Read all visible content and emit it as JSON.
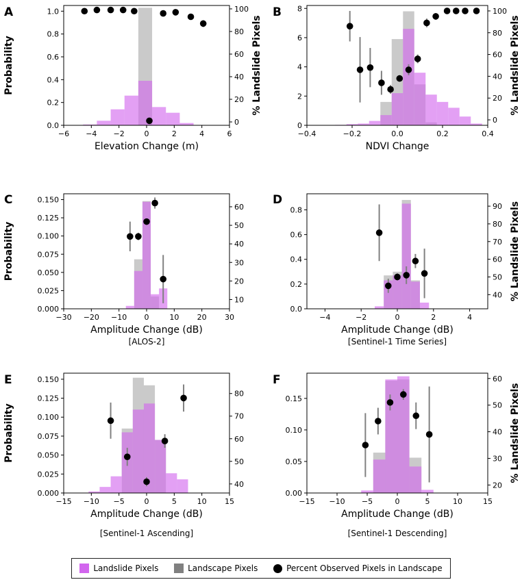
{
  "colors": {
    "landslide": "#d266ee",
    "landscape": "#808080",
    "marker": "#000000",
    "errbar": "#808080"
  },
  "legend": {
    "landslide": "Landslide Pixels",
    "landscape": "Landscape Pixels",
    "percent": "Percent Observed Pixels in Landscape"
  },
  "chart_data": [
    {
      "letter": "A",
      "type": "bar",
      "xlabel": "Elevation Change (m)",
      "ylabel": "Probability",
      "ylabel_right": "% Landslide Pixels",
      "caption": "",
      "xlim": [
        -6,
        6
      ],
      "xticks": [
        "−6",
        "−4",
        "−2",
        "0",
        "2",
        "4",
        "6"
      ],
      "xtick_values": [
        -6,
        -4,
        -2,
        0,
        2,
        4,
        6
      ],
      "ylim": [
        0,
        1.05
      ],
      "yticks": [
        "0.0",
        "0.2",
        "0.4",
        "0.6",
        "0.8",
        "1.0"
      ],
      "ytick_values": [
        0,
        0.2,
        0.4,
        0.6,
        0.8,
        1.0
      ],
      "y2lim": [
        -3,
        103
      ],
      "y2ticks": [
        "0",
        "20",
        "40",
        "60",
        "80",
        "100"
      ],
      "y2tick_values": [
        0,
        20,
        40,
        60,
        80,
        100
      ],
      "bin_edges": [
        -4.6,
        -3.6,
        -2.6,
        -1.6,
        -0.6,
        0.4,
        1.4,
        2.4,
        3.4
      ],
      "landslide": [
        0.007,
        0.04,
        0.14,
        0.26,
        0.39,
        0.16,
        0.11,
        0.02
      ],
      "landscape": [
        0,
        0,
        0,
        0,
        1.03,
        0,
        0,
        0
      ],
      "points": [
        {
          "x": -4.5,
          "y": 98,
          "err": 0
        },
        {
          "x": -3.6,
          "y": 99,
          "err": 0
        },
        {
          "x": -2.6,
          "y": 99,
          "err": 0
        },
        {
          "x": -1.7,
          "y": 99,
          "err": 0
        },
        {
          "x": -0.9,
          "y": 98,
          "err": 0
        },
        {
          "x": 0.2,
          "y": 1,
          "err": 0
        },
        {
          "x": 1.2,
          "y": 96,
          "err": 0
        },
        {
          "x": 2.1,
          "y": 97,
          "err": 0
        },
        {
          "x": 3.2,
          "y": 93,
          "err": 1
        },
        {
          "x": 4.1,
          "y": 87,
          "err": 3
        }
      ]
    },
    {
      "letter": "B",
      "type": "bar",
      "xlabel": "NDVI Change",
      "ylabel": "",
      "ylabel_right": "% Landslide Pixels",
      "caption": "",
      "xlim": [
        -0.4,
        0.4
      ],
      "xticks": [
        "−0.4",
        "−0.2",
        "0.0",
        "0.2",
        "0.4"
      ],
      "xtick_values": [
        -0.4,
        -0.2,
        0,
        0.2,
        0.4
      ],
      "ylim": [
        0,
        8.2
      ],
      "yticks": [
        "0",
        "2",
        "4",
        "6",
        "8"
      ],
      "ytick_values": [
        0,
        2,
        4,
        6,
        8
      ],
      "y2lim": [
        -5,
        105
      ],
      "y2ticks": [
        "0",
        "20",
        "40",
        "60",
        "80",
        "100"
      ],
      "y2tick_values": [
        0,
        20,
        40,
        60,
        80,
        100
      ],
      "bin_edges": [
        -0.375,
        -0.325,
        -0.275,
        -0.225,
        -0.175,
        -0.125,
        -0.075,
        -0.025,
        0.025,
        0.075,
        0.125,
        0.175,
        0.225,
        0.275,
        0.325,
        0.375
      ],
      "landslide": [
        0.01,
        0.01,
        0.03,
        0.08,
        0.12,
        0.3,
        0.7,
        2.2,
        6.6,
        3.6,
        2.1,
        1.6,
        1.2,
        0.6,
        0.12
      ],
      "landscape": [
        0,
        0,
        0,
        0,
        0,
        0,
        1.6,
        5.9,
        7.8,
        2.8,
        0.2,
        0,
        0,
        0,
        0
      ],
      "points": [
        {
          "x": -0.21,
          "y": 86,
          "err": 14
        },
        {
          "x": -0.165,
          "y": 46,
          "err": 30
        },
        {
          "x": -0.12,
          "y": 48,
          "err": 18
        },
        {
          "x": -0.07,
          "y": 34,
          "err": 11
        },
        {
          "x": -0.03,
          "y": 28,
          "err": 4
        },
        {
          "x": 0.01,
          "y": 38,
          "err": 3
        },
        {
          "x": 0.05,
          "y": 46,
          "err": 5
        },
        {
          "x": 0.09,
          "y": 56,
          "err": 4
        },
        {
          "x": 0.13,
          "y": 89,
          "err": 4
        },
        {
          "x": 0.17,
          "y": 95,
          "err": 3
        },
        {
          "x": 0.22,
          "y": 100,
          "err": 0
        },
        {
          "x": 0.26,
          "y": 100,
          "err": 0
        },
        {
          "x": 0.3,
          "y": 100,
          "err": 0
        },
        {
          "x": 0.35,
          "y": 100,
          "err": 0
        }
      ]
    },
    {
      "letter": "C",
      "type": "bar",
      "xlabel": "Amplitude Change (dB)",
      "ylabel": "Probability",
      "ylabel_right": "",
      "caption": "[ALOS-2]",
      "xlim": [
        -30,
        30
      ],
      "xticks": [
        "−30",
        "−20",
        "−10",
        "0",
        "10",
        "20",
        "30"
      ],
      "xtick_values": [
        -30,
        -20,
        -10,
        0,
        10,
        20,
        30
      ],
      "ylim": [
        0,
        0.158
      ],
      "yticks": [
        "0.000",
        "0.025",
        "0.050",
        "0.075",
        "0.100",
        "0.125",
        "0.150"
      ],
      "ytick_values": [
        0,
        0.025,
        0.05,
        0.075,
        0.1,
        0.125,
        0.15
      ],
      "y2lim": [
        5,
        67
      ],
      "y2ticks": [
        "10",
        "20",
        "30",
        "40",
        "50",
        "60"
      ],
      "y2tick_values": [
        10,
        20,
        30,
        40,
        50,
        60
      ],
      "bin_edges": [
        -7.5,
        -4.5,
        -1.5,
        1.5,
        4.5,
        7.5
      ],
      "landslide": [
        0.004,
        0.052,
        0.147,
        0.02,
        0.028
      ],
      "landscape": [
        0,
        0.068,
        0.148,
        0.017,
        0
      ],
      "points": [
        {
          "x": -6,
          "y": 44,
          "err": 8
        },
        {
          "x": -3,
          "y": 44,
          "err": 2
        },
        {
          "x": 0,
          "y": 52,
          "err": 1
        },
        {
          "x": 3,
          "y": 62,
          "err": 3
        },
        {
          "x": 6,
          "y": 21,
          "err": 13
        }
      ]
    },
    {
      "letter": "D",
      "type": "bar",
      "xlabel": "Amplitude Change (dB)",
      "ylabel": "",
      "ylabel_right": "% Landslide Pixels",
      "caption": "[Sentinel-1 Time Series]",
      "xlim": [
        -5,
        5
      ],
      "xticks": [
        "−4",
        "−2",
        "0",
        "2",
        "4"
      ],
      "xtick_values": [
        -4,
        -2,
        0,
        2,
        4
      ],
      "ylim": [
        0,
        0.93
      ],
      "yticks": [
        "0.0",
        "0.2",
        "0.4",
        "0.6",
        "0.8"
      ],
      "ytick_values": [
        0,
        0.2,
        0.4,
        0.6,
        0.8
      ],
      "y2lim": [
        32,
        97
      ],
      "y2ticks": [
        "40",
        "50",
        "60",
        "70",
        "80",
        "90"
      ],
      "y2tick_values": [
        40,
        50,
        60,
        70,
        80,
        90
      ],
      "bin_edges": [
        -1.25,
        -0.75,
        -0.25,
        0.25,
        0.75,
        1.25,
        1.75
      ],
      "landslide": [
        0.02,
        0.23,
        0.27,
        0.85,
        0.22,
        0.05
      ],
      "landscape": [
        0,
        0.27,
        0.3,
        0.88,
        0.23,
        0
      ],
      "points": [
        {
          "x": -1.0,
          "y": 75,
          "err": 16
        },
        {
          "x": -0.5,
          "y": 45,
          "err": 4
        },
        {
          "x": 0,
          "y": 50,
          "err": 2
        },
        {
          "x": 0.5,
          "y": 51,
          "err": 5
        },
        {
          "x": 1.0,
          "y": 59,
          "err": 4
        },
        {
          "x": 1.5,
          "y": 52,
          "err": 14
        }
      ]
    },
    {
      "letter": "E",
      "type": "bar",
      "xlabel": "Amplitude Change (dB)",
      "ylabel": "Probability",
      "ylabel_right": "",
      "caption": "[Sentinel-1 Ascending]",
      "xlim": [
        -15,
        15
      ],
      "xticks": [
        "−15",
        "−10",
        "−5",
        "0",
        "5",
        "10",
        "15"
      ],
      "xtick_values": [
        -15,
        -10,
        -5,
        0,
        5,
        10,
        15
      ],
      "ylim": [
        0,
        0.158
      ],
      "yticks": [
        "0.000",
        "0.025",
        "0.050",
        "0.075",
        "0.100",
        "0.125",
        "0.150"
      ],
      "ytick_values": [
        0,
        0.025,
        0.05,
        0.075,
        0.1,
        0.125,
        0.15
      ],
      "y2lim": [
        36,
        89
      ],
      "y2ticks": [
        "40",
        "50",
        "60",
        "70",
        "80"
      ],
      "y2tick_values": [
        40,
        50,
        60,
        70,
        80
      ],
      "bin_edges": [
        -10.5,
        -8.5,
        -6.5,
        -4.5,
        -2.5,
        -0.5,
        1.5,
        3.5,
        5.5,
        7.5
      ],
      "landslide": [
        0.002,
        0.008,
        0.022,
        0.08,
        0.11,
        0.118,
        0.07,
        0.026,
        0.018
      ],
      "landscape": [
        0,
        0,
        0,
        0.085,
        0.152,
        0.142,
        0.07,
        0,
        0
      ],
      "points": [
        {
          "x": -6.5,
          "y": 68,
          "err": 8
        },
        {
          "x": -3.5,
          "y": 52,
          "err": 4
        },
        {
          "x": 0,
          "y": 41,
          "err": 2
        },
        {
          "x": 3.3,
          "y": 59,
          "err": 3
        },
        {
          "x": 6.7,
          "y": 78,
          "err": 6
        }
      ]
    },
    {
      "letter": "F",
      "type": "bar",
      "xlabel": "Amplitude Change (dB)",
      "ylabel": "",
      "ylabel_right": "% Landslide Pixels",
      "caption": "[Sentinel-1 Descending]",
      "xlim": [
        -15,
        15
      ],
      "xticks": [
        "−15",
        "−10",
        "−5",
        "0",
        "5",
        "10",
        "15"
      ],
      "xtick_values": [
        -15,
        -10,
        -5,
        0,
        5,
        10,
        15
      ],
      "ylim": [
        0,
        0.19
      ],
      "yticks": [
        "0.00",
        "0.05",
        "0.10",
        "0.15"
      ],
      "ytick_values": [
        0,
        0.05,
        0.1,
        0.15
      ],
      "y2lim": [
        17,
        62
      ],
      "y2ticks": [
        "20",
        "30",
        "40",
        "50",
        "60"
      ],
      "y2tick_values": [
        20,
        30,
        40,
        50,
        60
      ],
      "bin_edges": [
        -6,
        -4,
        -2,
        0,
        2,
        4,
        6
      ],
      "landslide": [
        0.004,
        0.053,
        0.18,
        0.185,
        0.042,
        0.005
      ],
      "landscape": [
        0,
        0.064,
        0.178,
        0.18,
        0.056,
        0
      ],
      "points": [
        {
          "x": -5.3,
          "y": 35,
          "err": 12
        },
        {
          "x": -3.2,
          "y": 44,
          "err": 5
        },
        {
          "x": -1.2,
          "y": 51,
          "err": 3
        },
        {
          "x": 1.0,
          "y": 54,
          "err": 2
        },
        {
          "x": 3.1,
          "y": 46,
          "err": 5
        },
        {
          "x": 5.3,
          "y": 39,
          "err": 18
        }
      ]
    }
  ]
}
